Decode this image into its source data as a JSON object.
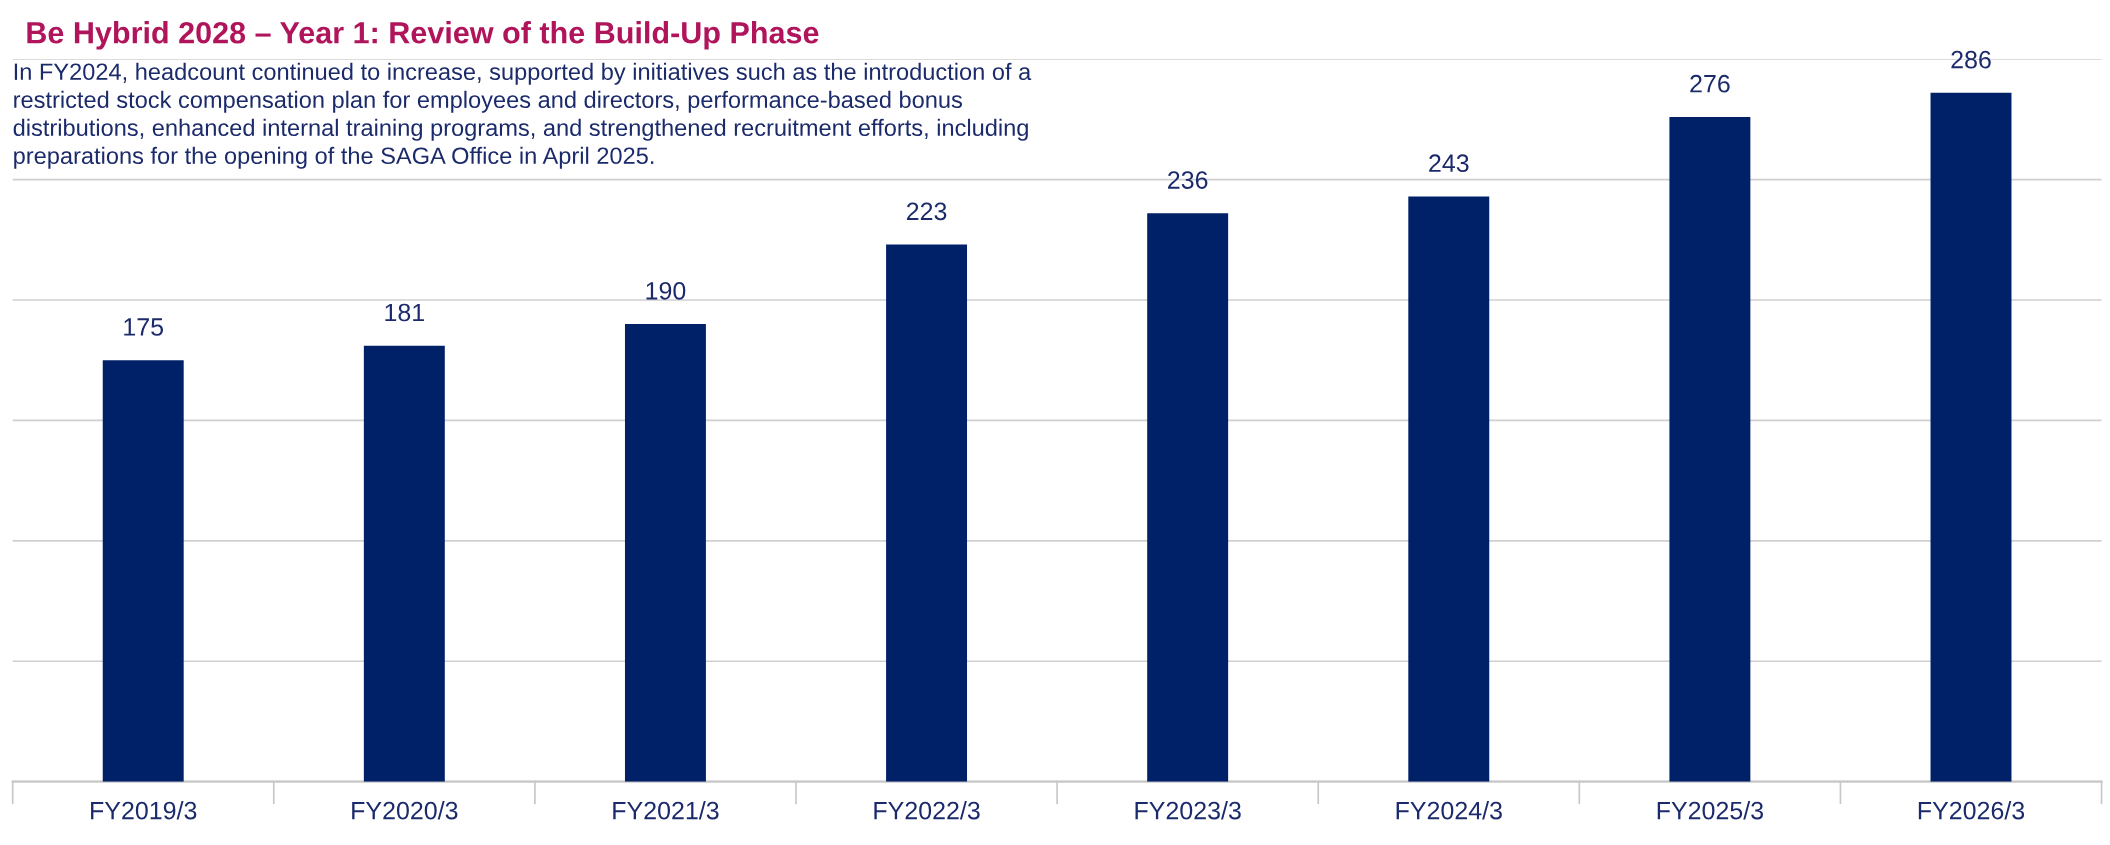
{
  "chart_data": {
    "type": "bar",
    "title": "Be Hybrid 2028 – Year 1: Review of the Build-Up Phase",
    "annotations": [
      "In FY2024, headcount continued to increase, supported by initiatives such as the introduction of a\nrestricted stock compensation plan for employees and directors, performance-based bonus\ndistributions, enhanced internal training programs, and strengthened recruitment efforts, including\npreparations for the opening of the SAGA Office in April 2025."
    ],
    "categories": [
      "FY2019/3",
      "FY2020/3",
      "FY2021/3",
      "FY2022/3",
      "FY2023/3",
      "FY2024/3",
      "FY2025/3",
      "FY2026/3"
    ],
    "values": [
      175,
      181,
      190,
      223,
      236,
      243,
      276,
      286
    ],
    "color": "#002068",
    "data_labels": true,
    "ylim": [
      0,
      300
    ],
    "yticks": [
      {
        "value": 0,
        "label": null
      },
      {
        "value": 50,
        "label": null
      },
      {
        "value": 100,
        "label": null
      },
      {
        "value": 150,
        "label": null
      },
      {
        "value": 200,
        "label": null
      },
      {
        "value": 250,
        "label": null
      },
      {
        "value": 300,
        "label": null
      }
    ],
    "grid": "y",
    "tick_labels": "x"
  }
}
